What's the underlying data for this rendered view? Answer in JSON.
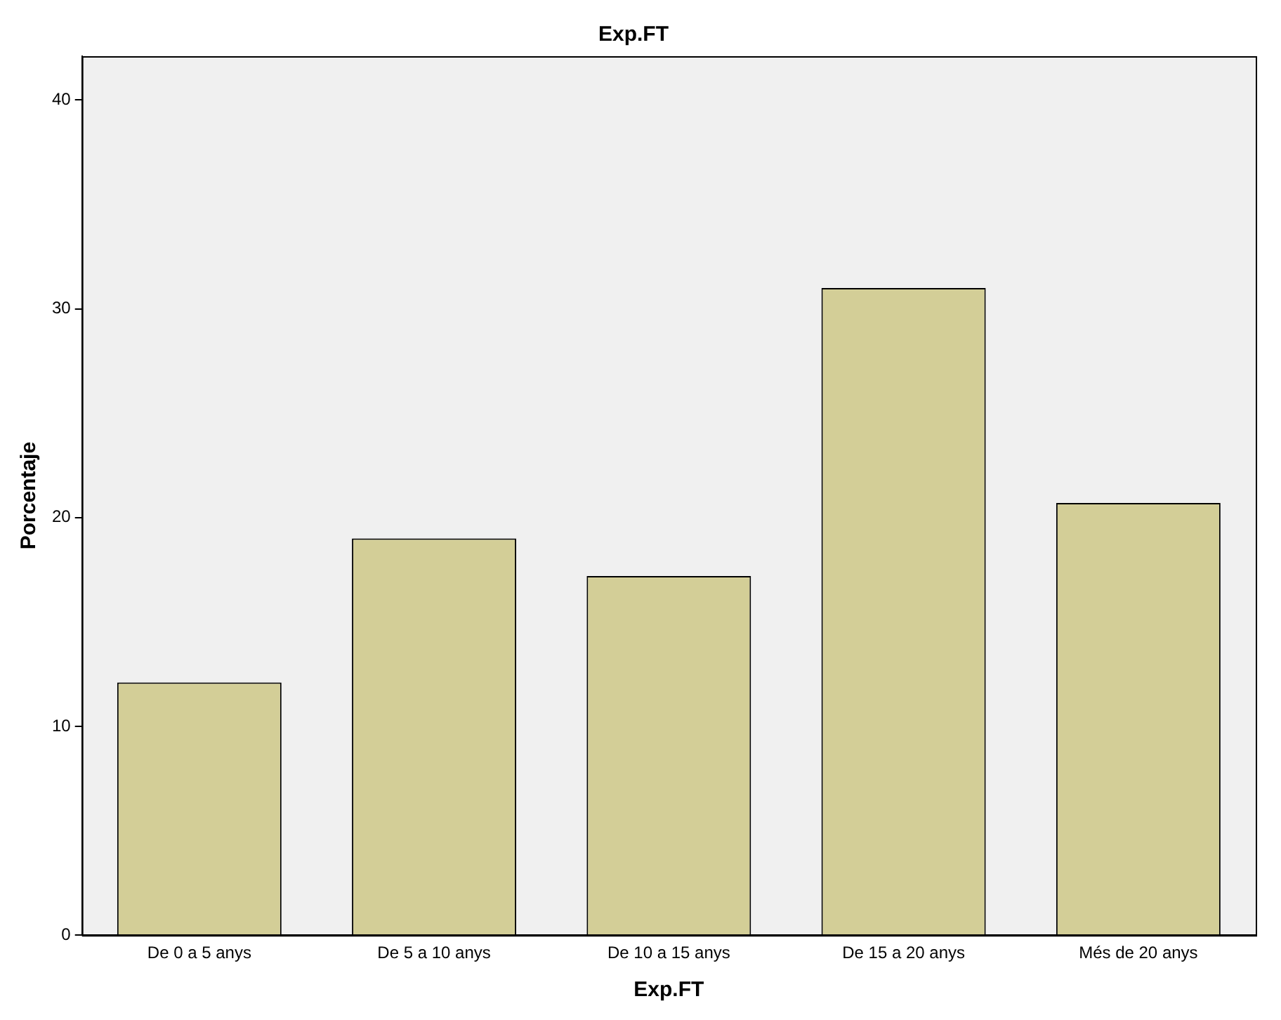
{
  "chart_data": {
    "type": "bar",
    "title": "Exp.FT",
    "xlabel": "Exp.FT",
    "ylabel": "Porcentaje",
    "categories": [
      "De 0 a 5 anys",
      "De 5 a 10 anys",
      "De 10 a 15 anys",
      "De 15 a 20 anys",
      "Més de 20 anys"
    ],
    "values": [
      12.1,
      19.0,
      17.2,
      31.0,
      20.7
    ],
    "color": "#d3ce97",
    "ylim": [
      0,
      42.1
    ],
    "yticks": [
      0,
      10,
      20,
      30,
      40
    ],
    "grid": false,
    "legend": false
  }
}
